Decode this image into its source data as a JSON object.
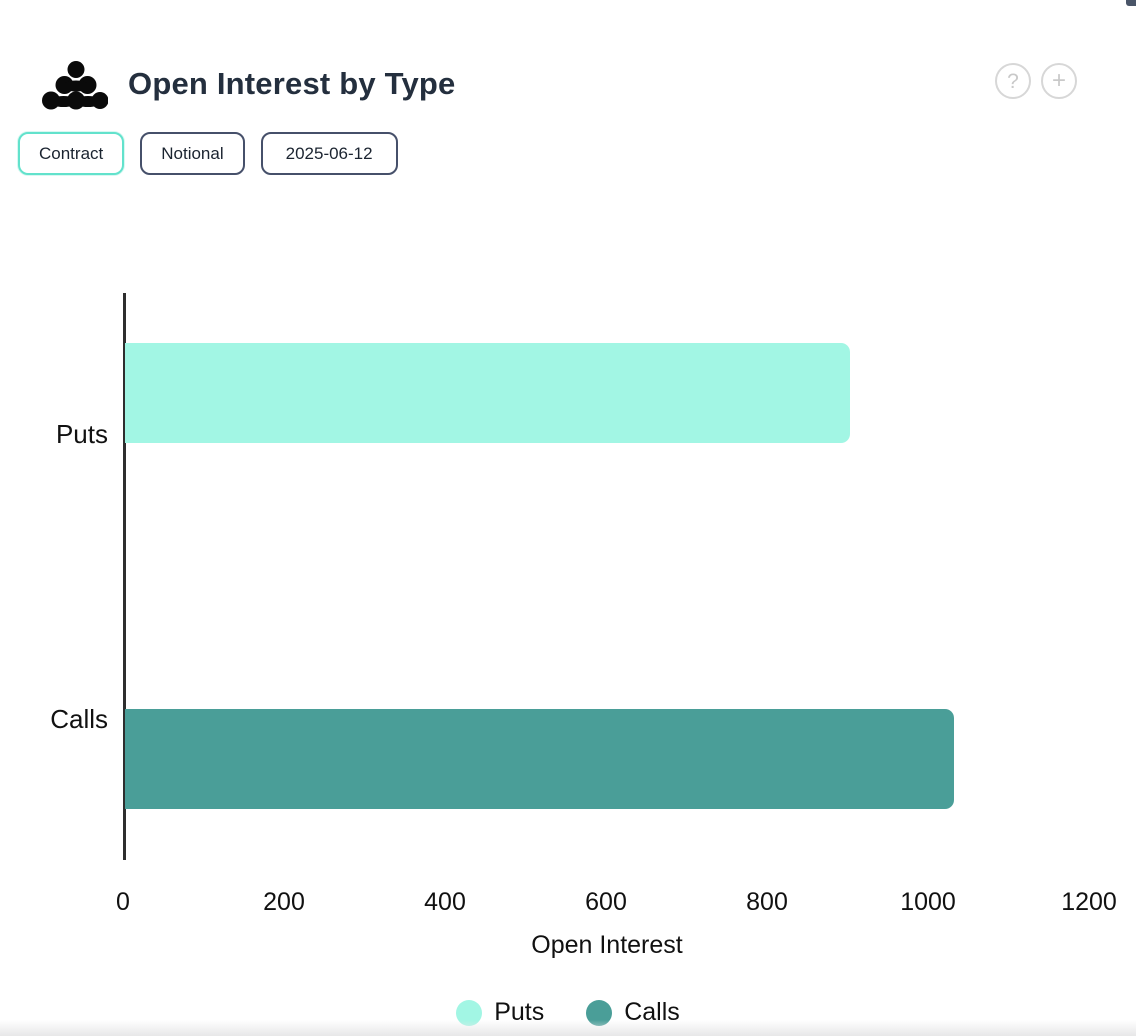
{
  "header": {
    "title": "Open Interest by Type",
    "help_label": "?",
    "add_label": "+"
  },
  "toolbar": {
    "buttons": [
      {
        "label": "Contract",
        "active": true
      },
      {
        "label": "Notional",
        "active": false
      },
      {
        "label": "2025-06-12",
        "active": false
      }
    ]
  },
  "colors": {
    "puts": "#a2f6e4",
    "calls": "#4a9e98",
    "active_button_border": "#62e2cc",
    "title_text": "#242f3e"
  },
  "chart_data": {
    "type": "bar",
    "orientation": "horizontal",
    "title": "Open Interest by Type",
    "categories": [
      "Puts",
      "Calls"
    ],
    "series": [
      {
        "name": "Puts",
        "color": "#a2f6e4",
        "data": [
          900,
          null
        ]
      },
      {
        "name": "Calls",
        "color": "#4a9e98",
        "data": [
          null,
          1030
        ]
      }
    ],
    "xlabel": "Open Interest",
    "ylabel": "",
    "xlim": [
      0,
      1200
    ],
    "xticks": [
      0,
      200,
      400,
      600,
      800,
      1000,
      1200
    ],
    "grid": false,
    "legend_position": "bottom"
  }
}
